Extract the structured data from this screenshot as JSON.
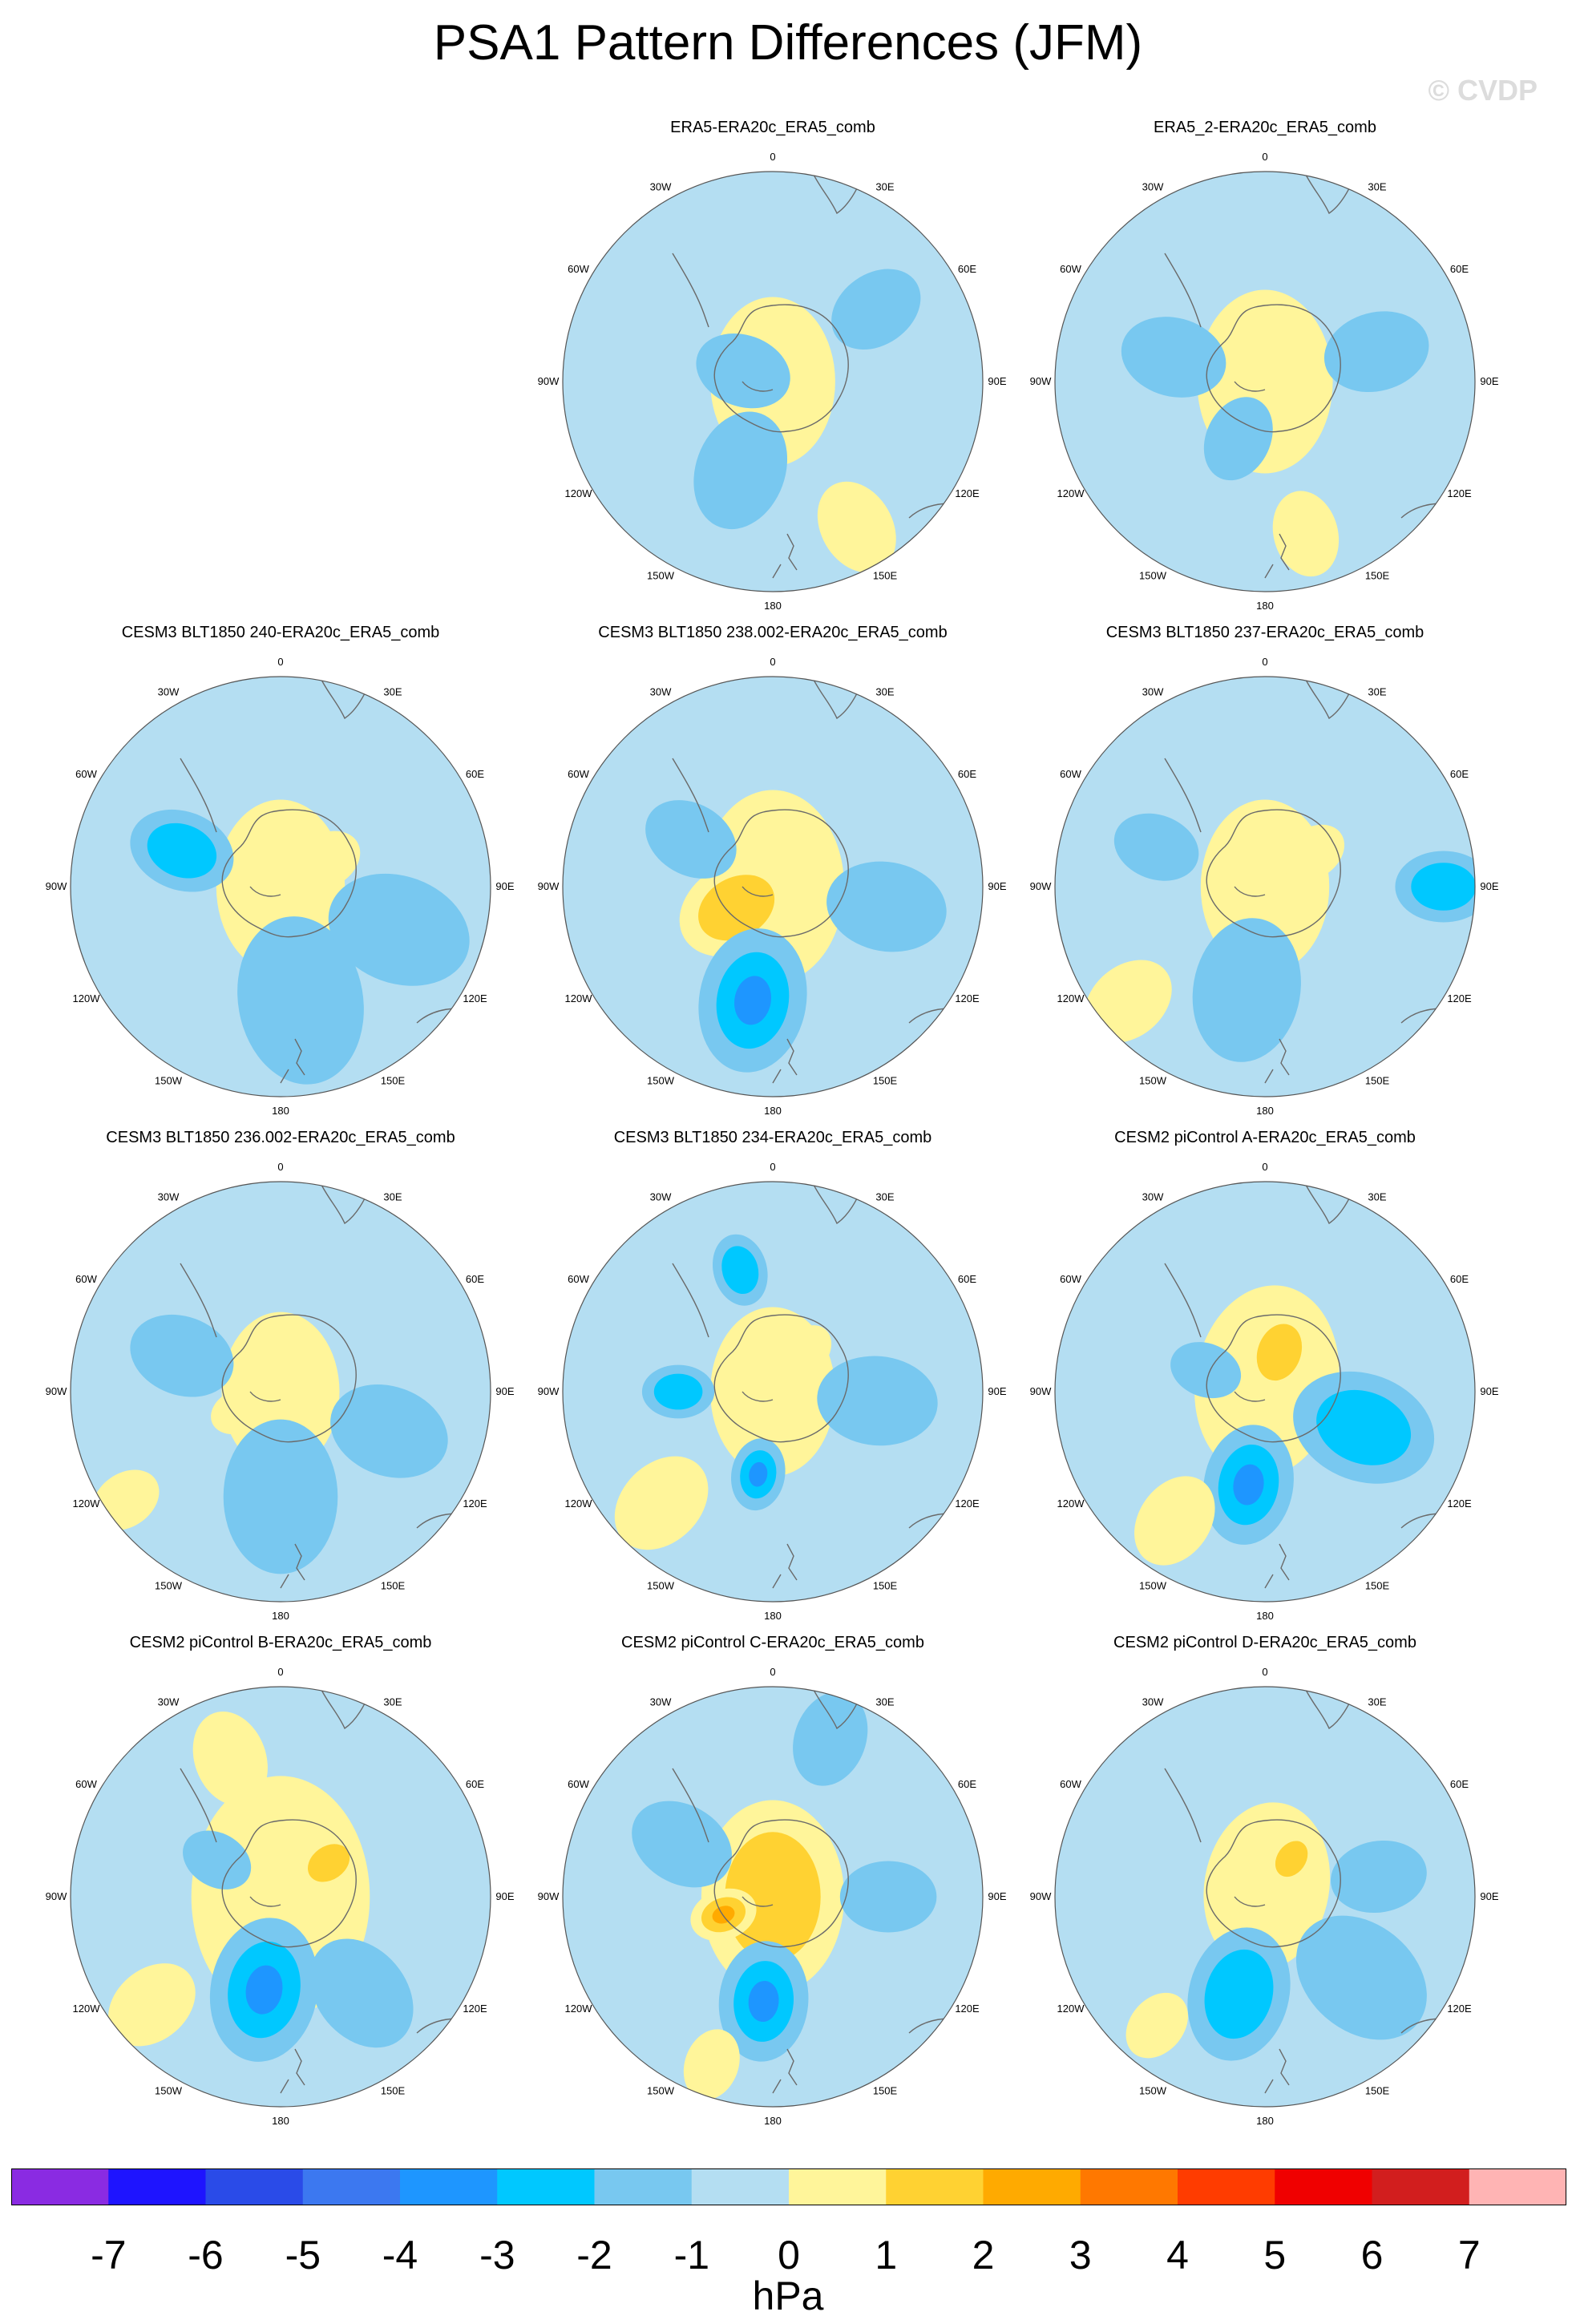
{
  "title": "PSA1 Pattern Differences (JFM)",
  "watermark": "© CVDP",
  "lon_labels": [
    "0",
    "30E",
    "60E",
    "90E",
    "120E",
    "150E",
    "180",
    "150W",
    "120W",
    "90W",
    "60W",
    "30W"
  ],
  "colors": {
    "ocean": "#b4def2",
    "land_line": "#6a6a6a",
    "ring": "#555555"
  },
  "chart_data": {
    "type": "heatmap",
    "projection": "south-polar-stereographic",
    "units": "hPa",
    "colorbar": {
      "levels": [
        -7,
        -6,
        -5,
        -4,
        -3,
        -2,
        -1,
        0,
        1,
        2,
        3,
        4,
        5,
        6,
        7
      ],
      "labels": [
        "-7",
        "-6",
        "-5",
        "-4",
        "-3",
        "-2",
        "-1",
        "0",
        "1",
        "2",
        "3",
        "4",
        "5",
        "6",
        "7"
      ],
      "colors": [
        "#8a2be2",
        "#1e14ff",
        "#2a4be8",
        "#3c78f0",
        "#1e96ff",
        "#00c8ff",
        "#78c8f0",
        "#b4def2",
        "#fff59a",
        "#ffd232",
        "#ffaa00",
        "#ff7800",
        "#ff3c00",
        "#f00000",
        "#d21e1e",
        "#ffb4b4"
      ]
    },
    "panels": [
      {
        "id": "p1",
        "title": "ERA5-ERA20c_ERA5_comb",
        "features": [
          [
            0,
            0,
            0.35,
            0.5
          ],
          [
            200,
            0.45,
            0.25,
            -0.8
          ],
          [
            55,
            0.6,
            0.2,
            -0.6
          ],
          [
            150,
            0.8,
            0.2,
            0.6
          ],
          [
            290,
            0.15,
            0.2,
            -0.5
          ]
        ]
      },
      {
        "id": "p2",
        "title": "ERA5_2-ERA20c_ERA5_comb",
        "features": [
          [
            0,
            0,
            0.38,
            0.6
          ],
          [
            75,
            0.55,
            0.22,
            -0.8
          ],
          [
            285,
            0.45,
            0.22,
            -0.8
          ],
          [
            205,
            0.3,
            0.18,
            -0.6
          ],
          [
            165,
            0.75,
            0.18,
            0.6
          ]
        ]
      },
      {
        "id": "p3",
        "title": "CESM3 BLT1850 240-ERA20c_ERA5_comb",
        "features": [
          [
            0,
            0,
            0.36,
            0.8
          ],
          [
            60,
            0.25,
            0.15,
            0.8
          ],
          [
            290,
            0.5,
            0.22,
            -1.8
          ],
          [
            170,
            0.55,
            0.35,
            -1.3
          ],
          [
            110,
            0.6,
            0.3,
            -1.2
          ]
        ]
      },
      {
        "id": "p4",
        "title": "CESM3 BLT1850 238.002-ERA20c_ERA5_comb",
        "features": [
          [
            0,
            0,
            0.4,
            1.2
          ],
          [
            240,
            0.2,
            0.25,
            1.6
          ],
          [
            190,
            0.55,
            0.3,
            -3.2
          ],
          [
            300,
            0.45,
            0.2,
            -1.4
          ],
          [
            100,
            0.55,
            0.25,
            -1.2
          ]
        ]
      },
      {
        "id": "p5",
        "title": "CESM3 BLT1850 237-ERA20c_ERA5_comb",
        "features": [
          [
            0,
            0,
            0.36,
            0.8
          ],
          [
            55,
            0.28,
            0.14,
            1.2
          ],
          [
            190,
            0.5,
            0.3,
            -1.3
          ],
          [
            90,
            0.85,
            0.2,
            -1.5
          ],
          [
            230,
            0.85,
            0.2,
            0.6
          ],
          [
            290,
            0.55,
            0.18,
            -1.2
          ]
        ]
      },
      {
        "id": "p6",
        "title": "CESM3 BLT1850 236.002-ERA20c_ERA5_comb",
        "features": [
          [
            0,
            0,
            0.33,
            0.8
          ],
          [
            245,
            0.22,
            0.12,
            1.2
          ],
          [
            180,
            0.5,
            0.32,
            -1.4
          ],
          [
            290,
            0.5,
            0.22,
            -1.2
          ],
          [
            110,
            0.55,
            0.25,
            -1.1
          ],
          [
            235,
            0.9,
            0.15,
            0.6
          ]
        ]
      },
      {
        "id": "p7",
        "title": "CESM3 BLT1850 234-ERA20c_ERA5_comb",
        "features": [
          [
            0,
            0,
            0.35,
            0.8
          ],
          [
            190,
            0.4,
            0.15,
            -2.8
          ],
          [
            270,
            0.45,
            0.15,
            -2.0
          ],
          [
            345,
            0.6,
            0.15,
            -1.6
          ],
          [
            95,
            0.5,
            0.25,
            -1.3
          ],
          [
            225,
            0.75,
            0.22,
            0.8
          ],
          [
            40,
            0.25,
            0.12,
            1.3
          ]
        ]
      },
      {
        "id": "p8",
        "title": "CESM2 piControl A-ERA20c_ERA5_comb",
        "features": [
          [
            10,
            0.05,
            0.4,
            1.2
          ],
          [
            20,
            0.2,
            0.18,
            1.5
          ],
          [
            190,
            0.45,
            0.25,
            -3.0
          ],
          [
            110,
            0.5,
            0.3,
            -1.5
          ],
          [
            215,
            0.75,
            0.2,
            0.8
          ],
          [
            290,
            0.3,
            0.15,
            -0.8
          ]
        ]
      },
      {
        "id": "p9",
        "title": "CESM2 piControl B-ERA20c_ERA5_comb",
        "features": [
          [
            0,
            0,
            0.5,
            0.7
          ],
          [
            55,
            0.28,
            0.14,
            1.5
          ],
          [
            190,
            0.45,
            0.3,
            -2.8
          ],
          [
            140,
            0.6,
            0.25,
            -1.4
          ],
          [
            230,
            0.8,
            0.2,
            0.6
          ],
          [
            300,
            0.35,
            0.15,
            -0.8
          ],
          [
            340,
            0.7,
            0.2,
            0.6
          ]
        ]
      },
      {
        "id": "p10",
        "title": "CESM2 piControl C-ERA20c_ERA5_comb",
        "features": [
          [
            0,
            0,
            0.4,
            1.8
          ],
          [
            250,
            0.25,
            0.14,
            2.6
          ],
          [
            185,
            0.5,
            0.25,
            -3.2
          ],
          [
            300,
            0.5,
            0.22,
            -1.4
          ],
          [
            90,
            0.55,
            0.2,
            -1.1
          ],
          [
            20,
            0.8,
            0.2,
            -1.0
          ],
          [
            200,
            0.85,
            0.15,
            0.6
          ]
        ]
      },
      {
        "id": "p11",
        "title": "CESM2 piControl D-ERA20c_ERA5_comb",
        "features": [
          [
            10,
            0.05,
            0.35,
            1.1
          ],
          [
            35,
            0.22,
            0.12,
            1.5
          ],
          [
            195,
            0.48,
            0.28,
            -2.2
          ],
          [
            130,
            0.6,
            0.3,
            -1.4
          ],
          [
            80,
            0.55,
            0.2,
            -1.0
          ],
          [
            220,
            0.8,
            0.15,
            0.6
          ]
        ]
      }
    ]
  }
}
